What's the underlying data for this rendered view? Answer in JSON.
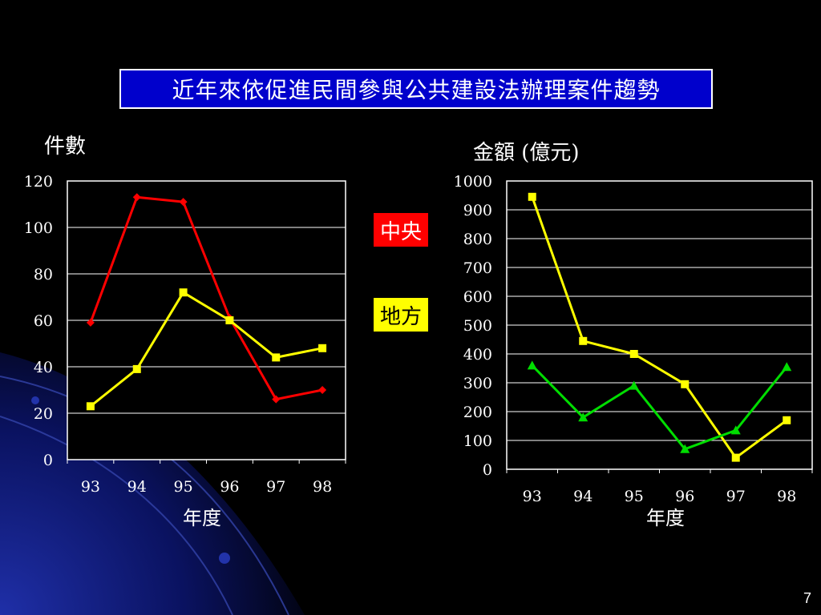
{
  "title": "近年來依促進民間參與公共建設法辦理案件趨勢",
  "page_number": "7",
  "legend": {
    "central": {
      "label": "中央",
      "color": "#ff0000"
    },
    "local": {
      "label": "地方",
      "color": "#ffff00"
    }
  },
  "colors": {
    "central": "#ff0000",
    "local": "#ffff00",
    "amount_central": "#00dd00",
    "amount_local": "#ffff00"
  },
  "chart_data": [
    {
      "type": "line",
      "ylabel": "件數",
      "xlabel": "年度",
      "categories": [
        "93",
        "94",
        "95",
        "96",
        "97",
        "98"
      ],
      "ylim": [
        0,
        120
      ],
      "yticks": [
        0,
        20,
        40,
        60,
        80,
        100,
        120
      ],
      "grid": true,
      "series": [
        {
          "name": "中央",
          "values": [
            59,
            113,
            111,
            61,
            26,
            30
          ],
          "color": "#ff0000",
          "marker": "diamond"
        },
        {
          "name": "地方",
          "values": [
            23,
            39,
            72,
            60,
            44,
            48
          ],
          "color": "#ffff00",
          "marker": "square"
        }
      ]
    },
    {
      "type": "line",
      "ylabel": "金額 (億元)",
      "xlabel": "年度",
      "categories": [
        "93",
        "94",
        "95",
        "96",
        "97",
        "98"
      ],
      "ylim": [
        0,
        1000
      ],
      "yticks": [
        0,
        100,
        200,
        300,
        400,
        500,
        600,
        700,
        800,
        900,
        1000
      ],
      "grid": true,
      "series": [
        {
          "name": "地方",
          "values": [
            945,
            445,
            400,
            295,
            40,
            170
          ],
          "color": "#ffff00",
          "marker": "square"
        },
        {
          "name": "中央",
          "values": [
            360,
            180,
            290,
            70,
            135,
            355
          ],
          "color": "#00dd00",
          "marker": "triangle"
        }
      ]
    }
  ]
}
